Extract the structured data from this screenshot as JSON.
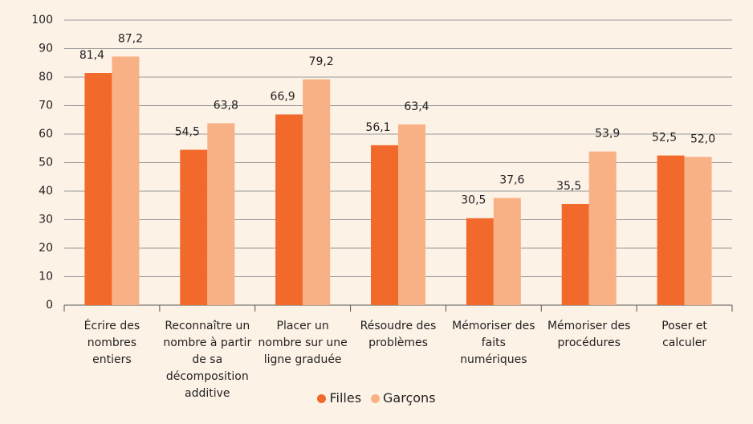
{
  "chart_data": {
    "type": "bar",
    "categories": [
      "Écrire des nombres entiers",
      "Reconnaître un nombre à partir de sa décomposition additive",
      "Placer un nombre sur une ligne graduée",
      "Résoudre des problèmes",
      "Mémoriser des faits numériques",
      "Mémoriser des procédures",
      "Poser et calculer"
    ],
    "series": [
      {
        "name": "Filles",
        "color": "#f1692b",
        "values": [
          81.4,
          54.5,
          66.9,
          56.1,
          30.5,
          35.5,
          52.5
        ],
        "value_labels": [
          "81,4",
          "54,5",
          "66,9",
          "56,1",
          "30,5",
          "35,5",
          "52,5"
        ]
      },
      {
        "name": "Garçons",
        "color": "#f8b184",
        "values": [
          87.2,
          63.8,
          79.2,
          63.4,
          37.6,
          53.9,
          52.0
        ],
        "value_labels": [
          "87,2",
          "63,8",
          "79,2",
          "63,4",
          "37,6",
          "53,9",
          "52,0"
        ]
      }
    ],
    "ylim": [
      0,
      100
    ],
    "yticks": [
      0,
      10,
      20,
      30,
      40,
      50,
      60,
      70,
      80,
      90,
      100
    ],
    "grid": true,
    "legend": "bottom"
  }
}
